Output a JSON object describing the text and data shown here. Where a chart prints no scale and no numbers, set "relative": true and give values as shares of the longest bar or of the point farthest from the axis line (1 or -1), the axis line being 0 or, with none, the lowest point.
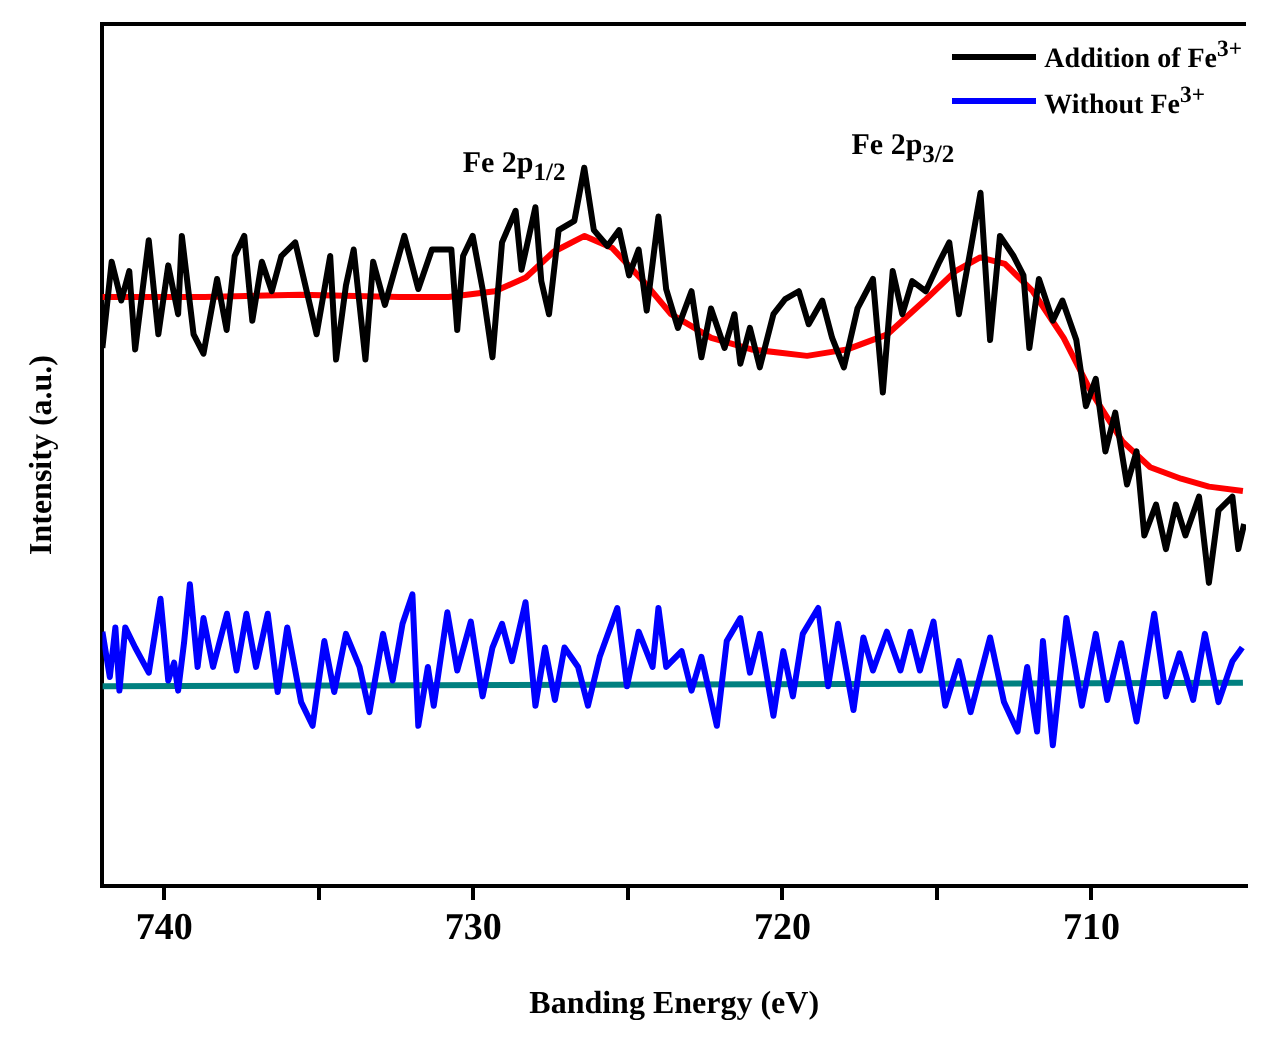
{
  "chart_data": {
    "type": "line",
    "xlabel": "Banding Energy (eV)",
    "ylabel": "Intensity (a.u.)",
    "relative": true,
    "xlim": [
      742,
      705
    ],
    "xticks": [
      740,
      {
        "value": 735,
        "label": null
      },
      730,
      {
        "value": 725,
        "label": null
      },
      720,
      {
        "value": 715,
        "label": null
      },
      710
    ],
    "grid": false,
    "legend": "top right",
    "marker": "none",
    "line_style": "solid",
    "annotations": [
      "Fe 2p$_{1/2}$",
      "Fe 2p$_{3/2}$"
    ],
    "series": [
      {
        "name": "Addition of Fe$^{3+}$",
        "color": "#000000",
        "x": [
          742.0,
          741.7,
          741.39,
          741.13,
          740.94,
          740.5,
          740.19,
          739.87,
          739.55,
          739.43,
          739.05,
          738.73,
          738.29,
          737.98,
          737.72,
          737.41,
          737.15,
          736.84,
          736.52,
          736.21,
          735.76,
          735.26,
          735.07,
          734.63,
          734.44,
          734.12,
          733.87,
          733.49,
          733.24,
          732.86,
          732.23,
          731.78,
          731.34,
          730.71,
          730.52,
          730.33,
          730.02,
          729.7,
          729.38,
          729.07,
          728.63,
          728.44,
          727.99,
          727.8,
          727.55,
          727.24,
          726.73,
          726.41,
          726.1,
          725.66,
          725.28,
          724.96,
          724.65,
          724.39,
          724.01,
          723.76,
          723.38,
          722.94,
          722.62,
          722.31,
          721.87,
          721.55,
          721.36,
          721.05,
          720.73,
          720.29,
          719.91,
          719.47,
          719.15,
          718.71,
          718.39,
          718.01,
          717.57,
          717.07,
          716.75,
          716.43,
          716.12,
          715.8,
          715.36,
          714.92,
          714.6,
          714.29,
          713.91,
          713.59,
          713.28,
          712.96,
          712.52,
          712.2,
          712.01,
          711.7,
          711.25,
          710.94,
          710.49,
          710.18,
          709.86,
          709.55,
          709.23,
          708.85,
          708.54,
          708.29,
          707.91,
          707.59,
          707.27,
          706.96,
          706.52,
          706.2,
          705.89,
          705.44,
          705.25,
          705.06
        ],
        "values": [
          0.749,
          0.869,
          0.815,
          0.856,
          0.747,
          0.899,
          0.768,
          0.864,
          0.796,
          0.905,
          0.768,
          0.741,
          0.845,
          0.774,
          0.877,
          0.905,
          0.787,
          0.869,
          0.828,
          0.877,
          0.896,
          0.804,
          0.768,
          0.877,
          0.733,
          0.836,
          0.886,
          0.733,
          0.869,
          0.809,
          0.905,
          0.831,
          0.886,
          0.886,
          0.774,
          0.877,
          0.905,
          0.831,
          0.736,
          0.896,
          0.94,
          0.858,
          0.945,
          0.842,
          0.796,
          0.913,
          0.926,
          1.0,
          0.913,
          0.891,
          0.913,
          0.85,
          0.886,
          0.801,
          0.932,
          0.831,
          0.777,
          0.828,
          0.736,
          0.804,
          0.749,
          0.796,
          0.727,
          0.777,
          0.722,
          0.796,
          0.817,
          0.828,
          0.782,
          0.815,
          0.763,
          0.722,
          0.804,
          0.845,
          0.687,
          0.856,
          0.796,
          0.842,
          0.828,
          0.869,
          0.896,
          0.796,
          0.886,
          0.965,
          0.76,
          0.905,
          0.877,
          0.85,
          0.749,
          0.845,
          0.787,
          0.815,
          0.76,
          0.668,
          0.706,
          0.605,
          0.659,
          0.559,
          0.605,
          0.488,
          0.531,
          0.469,
          0.531,
          0.488,
          0.542,
          0.422,
          0.523,
          0.542,
          0.469,
          0.504
        ]
      },
      {
        "name": "Without Fe$^{3+}$",
        "color": "#0000ff",
        "x": [
          742.0,
          741.76,
          741.58,
          741.45,
          741.26,
          740.94,
          740.5,
          740.12,
          739.87,
          739.68,
          739.55,
          739.36,
          739.17,
          738.92,
          738.73,
          738.42,
          737.97,
          737.66,
          737.34,
          737.03,
          736.65,
          736.33,
          736.02,
          735.57,
          735.2,
          734.82,
          734.5,
          734.12,
          733.68,
          733.36,
          732.92,
          732.61,
          732.29,
          731.97,
          731.78,
          731.47,
          731.28,
          730.84,
          730.52,
          730.08,
          729.7,
          729.38,
          729.07,
          728.75,
          728.31,
          727.99,
          727.68,
          727.36,
          727.05,
          726.61,
          726.29,
          725.91,
          725.34,
          725.03,
          724.65,
          724.2,
          724.01,
          723.76,
          723.26,
          722.94,
          722.62,
          722.12,
          721.8,
          721.36,
          721.05,
          720.73,
          720.29,
          719.97,
          719.66,
          719.34,
          718.84,
          718.52,
          718.2,
          717.7,
          717.38,
          717.07,
          716.62,
          716.18,
          715.86,
          715.55,
          715.11,
          714.73,
          714.29,
          713.91,
          713.28,
          712.83,
          712.39,
          712.08,
          711.76,
          711.57,
          711.25,
          710.81,
          710.31,
          709.86,
          709.49,
          709.04,
          708.54,
          707.97,
          707.59,
          707.15,
          706.71,
          706.33,
          705.89,
          705.44,
          705.12
        ],
        "values": [
          0.354,
          0.291,
          0.36,
          0.272,
          0.36,
          0.332,
          0.297,
          0.4,
          0.286,
          0.311,
          0.272,
          0.338,
          0.42,
          0.305,
          0.373,
          0.305,
          0.379,
          0.3,
          0.379,
          0.305,
          0.379,
          0.27,
          0.36,
          0.256,
          0.223,
          0.341,
          0.27,
          0.351,
          0.305,
          0.242,
          0.351,
          0.286,
          0.365,
          0.406,
          0.223,
          0.305,
          0.251,
          0.381,
          0.3,
          0.368,
          0.264,
          0.332,
          0.365,
          0.313,
          0.395,
          0.251,
          0.332,
          0.259,
          0.332,
          0.305,
          0.251,
          0.319,
          0.387,
          0.278,
          0.354,
          0.305,
          0.387,
          0.305,
          0.327,
          0.272,
          0.319,
          0.223,
          0.341,
          0.373,
          0.297,
          0.351,
          0.237,
          0.327,
          0.264,
          0.351,
          0.387,
          0.278,
          0.365,
          0.245,
          0.346,
          0.3,
          0.354,
          0.3,
          0.354,
          0.3,
          0.368,
          0.251,
          0.313,
          0.242,
          0.346,
          0.256,
          0.215,
          0.305,
          0.215,
          0.341,
          0.196,
          0.373,
          0.251,
          0.351,
          0.259,
          0.338,
          0.229,
          0.379,
          0.264,
          0.324,
          0.259,
          0.351,
          0.256,
          0.313,
          0.332
        ]
      },
      {
        "color": "#ff0000",
        "x": [
          742.0,
          738.7,
          735.6,
          732.4,
          730.8,
          729.3,
          728.3,
          727.4,
          726.4,
          725.5,
          724.5,
          723.6,
          722.3,
          721.0,
          719.2,
          717.9,
          716.6,
          715.4,
          714.4,
          713.6,
          712.8,
          711.9,
          710.9,
          710.0,
          709.0,
          708.1,
          707.1,
          706.2,
          705.1
        ],
        "values": [
          0.82,
          0.82,
          0.823,
          0.82,
          0.82,
          0.828,
          0.847,
          0.883,
          0.905,
          0.888,
          0.842,
          0.796,
          0.763,
          0.747,
          0.738,
          0.747,
          0.768,
          0.815,
          0.856,
          0.875,
          0.866,
          0.828,
          0.763,
          0.687,
          0.619,
          0.583,
          0.567,
          0.556,
          0.55
        ]
      },
      {
        "color": "#008080",
        "x": [
          742.0,
          705.1
        ],
        "values": [
          0.278,
          0.283
        ]
      }
    ]
  }
}
